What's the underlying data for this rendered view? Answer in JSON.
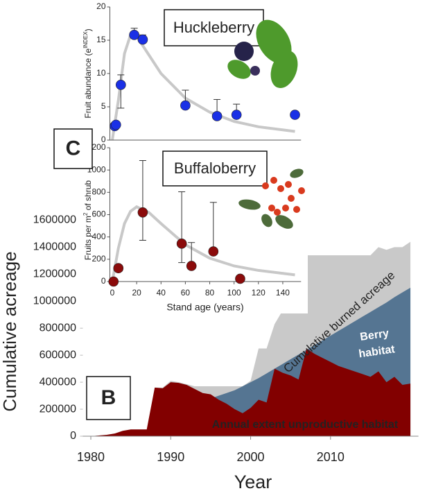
{
  "chart_data": [
    {
      "type": "area",
      "panel": "B",
      "xlabel": "Year",
      "ylabel": "Cumulative acreage",
      "x": [
        1980,
        1981,
        1982,
        1983,
        1984,
        1985,
        1986,
        1987,
        1988,
        1989,
        1990,
        1991,
        1992,
        1993,
        1994,
        1995,
        1996,
        1997,
        1998,
        1999,
        2000,
        2001,
        2002,
        2003,
        2004,
        2005,
        2006,
        2007,
        2008,
        2009,
        2010,
        2011,
        2012,
        2013,
        2014,
        2015,
        2016,
        2017,
        2018,
        2019,
        2020
      ],
      "xlim": [
        1979,
        2021
      ],
      "xticks": [
        1980,
        1990,
        2000,
        2010
      ],
      "ylim": [
        0,
        1700000
      ],
      "yticks": [
        0,
        200000,
        400000,
        600000,
        800000,
        1000000,
        1200000,
        1400000,
        1600000
      ],
      "series": [
        {
          "name": "Cumulative burned acreage",
          "color": "#c9c9c9",
          "values": [
            0,
            5000,
            10000,
            20000,
            40000,
            50000,
            50000,
            50000,
            360000,
            360000,
            410000,
            400000,
            385000,
            370000,
            370000,
            370000,
            370000,
            370000,
            370000,
            370000,
            410000,
            650000,
            650000,
            830000,
            930000,
            930000,
            980000,
            1340000,
            1340000,
            1340000,
            1340000,
            1340000,
            1340000,
            1340000,
            1340000,
            1340000,
            1400000,
            1380000,
            1400000,
            1400000,
            1440000
          ]
        },
        {
          "name": "Berry habitat",
          "color": "#557592",
          "values": [
            null,
            null,
            null,
            null,
            null,
            null,
            null,
            null,
            null,
            null,
            null,
            null,
            null,
            null,
            null,
            280000,
            300000,
            320000,
            340000,
            370000,
            400000,
            430000,
            465000,
            500000,
            535000,
            570000,
            605000,
            640000,
            675000,
            710000,
            745000,
            780000,
            815000,
            850000,
            885000,
            920000,
            955000,
            990000,
            1030000,
            1065000,
            1100000
          ]
        },
        {
          "name": "Annual extent unproductive habitat",
          "color": "#820000",
          "values": [
            0,
            5000,
            10000,
            20000,
            40000,
            50000,
            50000,
            50000,
            360000,
            355000,
            400000,
            395000,
            380000,
            350000,
            320000,
            310000,
            270000,
            240000,
            200000,
            170000,
            210000,
            270000,
            250000,
            500000,
            470000,
            450000,
            420000,
            650000,
            610000,
            580000,
            550000,
            520000,
            500000,
            480000,
            460000,
            440000,
            480000,
            400000,
            440000,
            380000,
            390000
          ]
        }
      ]
    },
    {
      "type": "scatter",
      "panel": "C",
      "title": "Huckleberry",
      "ylabel": [
        "Fruit abundance (e",
        "INDEX",
        ")"
      ],
      "xlim": [
        -2,
        155
      ],
      "ylim": [
        0,
        20
      ],
      "yticks": [
        0,
        5,
        10,
        15,
        20
      ],
      "series": [
        {
          "color": "#1a30e6",
          "x": [
            2,
            3,
            7,
            18,
            25,
            60,
            86,
            102,
            150
          ],
          "values": [
            2.1,
            2.3,
            8.3,
            15.8,
            15.1,
            5.2,
            3.6,
            3.8,
            3.8
          ],
          "error_up": [
            null,
            null,
            1.5,
            1.0,
            0.7,
            2.3,
            2.5,
            1.6,
            null
          ],
          "error_down": [
            null,
            null,
            3.5,
            null,
            null,
            null,
            null,
            null,
            null
          ]
        }
      ],
      "curve": {
        "color": "#c8c8c8",
        "x": [
          0,
          5,
          10,
          15,
          20,
          30,
          40,
          60,
          80,
          100,
          120,
          150
        ],
        "values": [
          0,
          6,
          13,
          15.8,
          15.6,
          12.8,
          10,
          6.3,
          4.2,
          2.8,
          2,
          1.3
        ]
      }
    },
    {
      "type": "scatter",
      "title": "Buffaloberry",
      "xlabel": "Stand age (years)",
      "ylabel": [
        "Fruits per m",
        "2",
        " of shrub"
      ],
      "xlim": [
        -2,
        155
      ],
      "xticks": [
        0,
        20,
        40,
        60,
        80,
        100,
        120,
        140
      ],
      "ylim": [
        0,
        1200
      ],
      "yticks": [
        0,
        200,
        400,
        600,
        800,
        1000,
        1200
      ],
      "series": [
        {
          "color": "#8b0b0b",
          "x": [
            1,
            5,
            25,
            57,
            65,
            83,
            105
          ],
          "values": [
            0,
            120,
            620,
            340,
            140,
            270,
            25
          ],
          "error_up": [
            null,
            null,
            465,
            465,
            210,
            440,
            null
          ],
          "error_down": [
            null,
            null,
            250,
            170,
            null,
            null,
            null
          ]
        }
      ],
      "curve": {
        "color": "#c8c8c8",
        "x": [
          0,
          5,
          10,
          15,
          20,
          30,
          40,
          60,
          80,
          100,
          120,
          150
        ],
        "values": [
          0,
          300,
          520,
          630,
          670,
          620,
          520,
          330,
          210,
          140,
          100,
          60
        ]
      }
    }
  ]
}
